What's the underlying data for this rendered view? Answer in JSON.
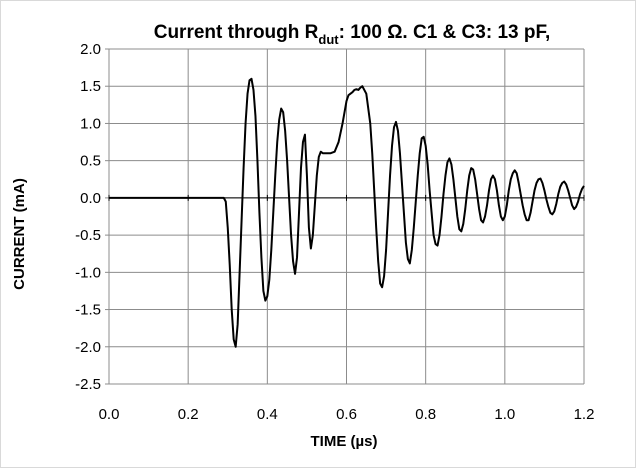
{
  "chart_data": {
    "type": "line",
    "title_parts": {
      "main": "Current through R",
      "subscript": "dut",
      "rest": ": 100 Ω. C1 & C3: 13 pF,"
    },
    "xlabel": "TIME (µs)",
    "ylabel": "CURRENT (mA)",
    "xlim": [
      0.0,
      1.2
    ],
    "ylim": [
      -2.5,
      2.0
    ],
    "x_ticks": [
      "0.0",
      "0.2",
      "0.4",
      "0.6",
      "0.8",
      "1.0",
      "1.2"
    ],
    "y_ticks": [
      "2.0",
      "1.5",
      "1.0",
      "0.5",
      "0.0",
      "-0.5",
      "-1.0",
      "-1.5",
      "-2.0",
      "-2.5"
    ],
    "grid": true,
    "legend": "none",
    "colors": {
      "line": "#000000",
      "grid": "#8c8c8c",
      "frame": "#d9d9d9"
    },
    "series": [
      {
        "x": [
          0.0,
          0.29,
          0.295,
          0.3,
          0.305,
          0.31,
          0.315,
          0.32,
          0.325,
          0.33,
          0.335,
          0.34,
          0.345,
          0.35,
          0.355,
          0.36,
          0.365,
          0.37,
          0.375,
          0.38,
          0.385,
          0.39,
          0.395,
          0.4,
          0.405,
          0.41,
          0.415,
          0.42,
          0.425,
          0.43,
          0.435,
          0.44,
          0.445,
          0.45,
          0.455,
          0.46,
          0.465,
          0.47,
          0.475,
          0.48,
          0.485,
          0.49,
          0.495,
          0.5,
          0.505,
          0.51,
          0.515,
          0.52,
          0.525,
          0.53,
          0.535,
          0.54,
          0.545,
          0.55,
          0.56,
          0.57,
          0.58,
          0.59,
          0.6,
          0.605,
          0.61,
          0.615,
          0.62,
          0.625,
          0.63,
          0.635,
          0.64,
          0.65,
          0.66,
          0.665,
          0.67,
          0.675,
          0.68,
          0.685,
          0.69,
          0.695,
          0.7,
          0.705,
          0.71,
          0.715,
          0.72,
          0.725,
          0.73,
          0.735,
          0.74,
          0.745,
          0.75,
          0.755,
          0.76,
          0.765,
          0.77,
          0.775,
          0.78,
          0.785,
          0.79,
          0.795,
          0.8,
          0.805,
          0.81,
          0.815,
          0.82,
          0.825,
          0.83,
          0.835,
          0.84,
          0.845,
          0.85,
          0.855,
          0.86,
          0.865,
          0.87,
          0.875,
          0.88,
          0.885,
          0.89,
          0.895,
          0.9,
          0.905,
          0.91,
          0.915,
          0.92,
          0.925,
          0.93,
          0.935,
          0.94,
          0.945,
          0.95,
          0.955,
          0.96,
          0.965,
          0.97,
          0.975,
          0.98,
          0.985,
          0.99,
          0.995,
          1.0,
          1.005,
          1.01,
          1.015,
          1.02,
          1.025,
          1.03,
          1.035,
          1.04,
          1.045,
          1.05,
          1.055,
          1.06,
          1.065,
          1.07,
          1.075,
          1.08,
          1.085,
          1.09,
          1.095,
          1.1,
          1.105,
          1.11,
          1.115,
          1.12,
          1.125,
          1.13,
          1.135,
          1.14,
          1.145,
          1.15,
          1.155,
          1.16,
          1.165,
          1.17,
          1.175,
          1.18,
          1.185,
          1.19,
          1.195,
          1.2
        ],
        "y": [
          0.0,
          0.0,
          -0.05,
          -0.4,
          -0.9,
          -1.5,
          -1.9,
          -2.0,
          -1.7,
          -1.0,
          -0.3,
          0.4,
          1.0,
          1.4,
          1.58,
          1.6,
          1.45,
          1.1,
          0.5,
          -0.2,
          -0.8,
          -1.25,
          -1.38,
          -1.32,
          -1.1,
          -0.7,
          -0.2,
          0.3,
          0.75,
          1.05,
          1.2,
          1.15,
          0.9,
          0.5,
          0.0,
          -0.5,
          -0.85,
          -1.02,
          -0.8,
          -0.2,
          0.4,
          0.75,
          0.85,
          0.3,
          -0.4,
          -0.68,
          -0.5,
          -0.1,
          0.3,
          0.55,
          0.62,
          0.6,
          0.6,
          0.6,
          0.6,
          0.62,
          0.75,
          1.0,
          1.3,
          1.38,
          1.4,
          1.42,
          1.45,
          1.46,
          1.45,
          1.48,
          1.5,
          1.4,
          1.0,
          0.6,
          0.1,
          -0.4,
          -0.85,
          -1.15,
          -1.2,
          -1.05,
          -0.7,
          -0.2,
          0.3,
          0.7,
          0.95,
          1.02,
          0.9,
          0.6,
          0.2,
          -0.2,
          -0.6,
          -0.82,
          -0.88,
          -0.7,
          -0.4,
          -0.05,
          0.3,
          0.6,
          0.8,
          0.82,
          0.7,
          0.45,
          0.1,
          -0.2,
          -0.5,
          -0.62,
          -0.64,
          -0.5,
          -0.25,
          0.05,
          0.3,
          0.48,
          0.53,
          0.45,
          0.25,
          0.0,
          -0.25,
          -0.42,
          -0.45,
          -0.35,
          -0.15,
          0.1,
          0.3,
          0.4,
          0.38,
          0.25,
          0.05,
          -0.15,
          -0.3,
          -0.33,
          -0.25,
          -0.1,
          0.1,
          0.25,
          0.3,
          0.25,
          0.1,
          -0.1,
          -0.25,
          -0.3,
          -0.25,
          -0.1,
          0.1,
          0.25,
          0.33,
          0.37,
          0.33,
          0.2,
          0.05,
          -0.1,
          -0.22,
          -0.3,
          -0.3,
          -0.2,
          -0.05,
          0.1,
          0.2,
          0.25,
          0.26,
          0.2,
          0.1,
          -0.02,
          -0.12,
          -0.2,
          -0.22,
          -0.18,
          -0.08,
          0.05,
          0.15,
          0.2,
          0.22,
          0.18,
          0.1,
          0.0,
          -0.1,
          -0.15,
          -0.12,
          -0.05,
          0.05,
          0.12,
          0.16
        ]
      }
    ]
  }
}
